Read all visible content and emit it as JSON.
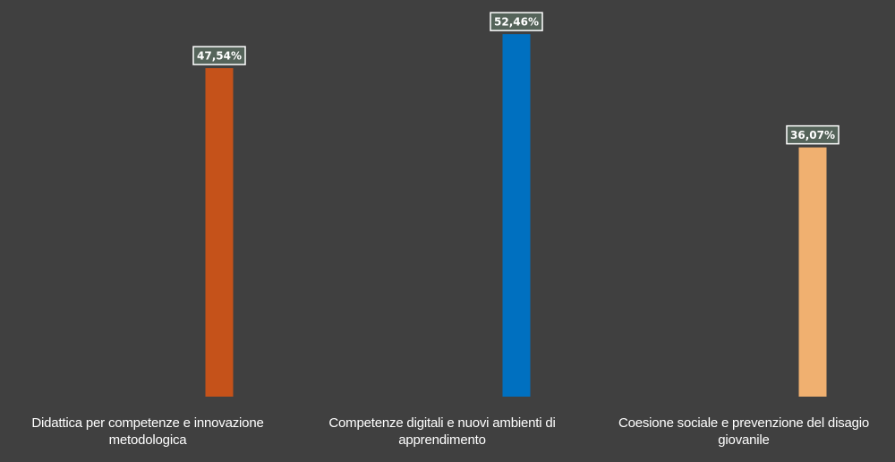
{
  "chart_data": {
    "type": "bar",
    "categories": [
      "Didattica per competenze e innovazione metodologica",
      "Competenze digitali e nuovi ambienti di apprendimento",
      "Coesione sociale e prevenzione del disagio giovanile"
    ],
    "values": [
      47.54,
      52.46,
      36.07
    ],
    "value_labels": [
      "47,54%",
      "52,46%",
      "36,07%"
    ],
    "colors": [
      "#c5521a",
      "#0070c0",
      "#f0b070"
    ],
    "data_label_fill": "#55645a",
    "data_label_border": "#ffffff",
    "data_label_text_color": "#ffffff",
    "background": "#404040",
    "ylim": [
      0,
      57.4
    ],
    "grid": false,
    "legend": "none",
    "title": "",
    "xlabel": "",
    "ylabel": ""
  }
}
